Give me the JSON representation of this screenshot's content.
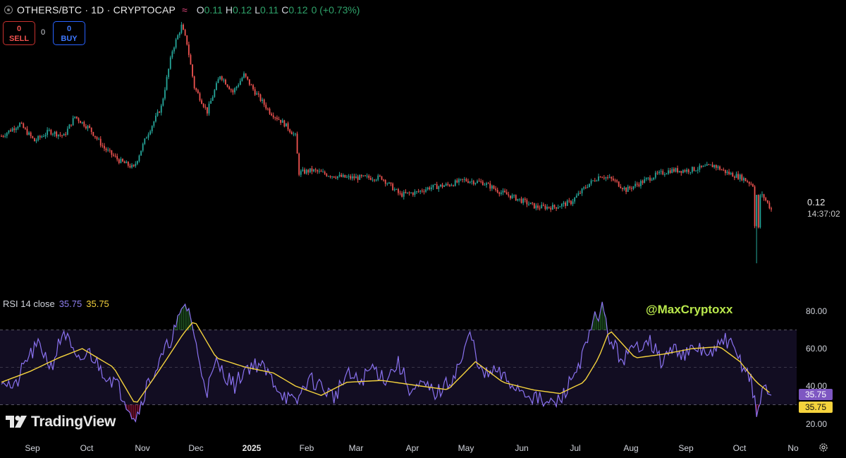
{
  "header": {
    "title": "OTHERS/BTC · 1D · CRYPTOCAP",
    "open_label": "O",
    "open": "0.11",
    "high_label": "H",
    "high": "0.12",
    "low_label": "L",
    "low": "0.11",
    "close_label": "C",
    "close": "0.12",
    "change": "0 (+0.73%)"
  },
  "trade": {
    "sell_value": "0",
    "sell_label": "SELL",
    "spread": "0",
    "buy_value": "0",
    "buy_label": "BUY"
  },
  "price_axis": {
    "last_price": "0.12",
    "countdown": "14:37:02"
  },
  "rsi": {
    "label": "RSI 14 close",
    "value": "35.75",
    "ma_value": "35.75",
    "ticks": [
      "80.00",
      "60.00",
      "40.00",
      "20.00"
    ],
    "badge_value": "35.75",
    "badge_ma_value": "35.75"
  },
  "watermark": "@MaxCryptoxx",
  "logo_text": "TradingView",
  "time_axis": [
    "Sep",
    "Oct",
    "Nov",
    "Dec",
    "2025",
    "Feb",
    "Mar",
    "Apr",
    "May",
    "Jun",
    "Jul",
    "Aug",
    "Sep",
    "Oct",
    "No"
  ],
  "colors": {
    "up": "#26a69a",
    "down": "#ef5350",
    "rsi": "#7e57c2",
    "rsi_ma": "#f5d33d",
    "watermark": "#b9e84c",
    "background": "#000000"
  },
  "chart_data": [
    {
      "type": "candlestick",
      "title": "OTHERS/BTC · 1D · CRYPTOCAP",
      "interval": "1D",
      "x_range": [
        "2024-08-25",
        "2025-10-18"
      ],
      "last_close": 0.12,
      "close_series_approx": {
        "dates": [
          "2024-08-25",
          "2024-09-04",
          "2024-09-12",
          "2024-09-20",
          "2024-09-28",
          "2024-10-04",
          "2024-10-12",
          "2024-10-20",
          "2024-10-28",
          "2024-11-05",
          "2024-11-12",
          "2024-11-20",
          "2024-11-26",
          "2024-12-01",
          "2024-12-04",
          "2024-12-08",
          "2024-12-15",
          "2024-12-22",
          "2024-12-29",
          "2025-01-04",
          "2025-01-10",
          "2025-01-18",
          "2025-01-26",
          "2025-02-01",
          "2025-02-03",
          "2025-02-10",
          "2025-02-20",
          "2025-03-01",
          "2025-03-10",
          "2025-03-20",
          "2025-03-30",
          "2025-04-08",
          "2025-04-15",
          "2025-04-25",
          "2025-05-04",
          "2025-05-14",
          "2025-05-24",
          "2025-06-03",
          "2025-06-12",
          "2025-06-22",
          "2025-07-01",
          "2025-07-10",
          "2025-07-17",
          "2025-07-24",
          "2025-07-31",
          "2025-08-08",
          "2025-08-16",
          "2025-08-24",
          "2025-09-02",
          "2025-09-10",
          "2025-09-17",
          "2025-09-24",
          "2025-10-02",
          "2025-10-08",
          "2025-10-10",
          "2025-10-12",
          "2025-10-14",
          "2025-10-18"
        ],
        "values": [
          0.15,
          0.155,
          0.148,
          0.152,
          0.15,
          0.158,
          0.153,
          0.145,
          0.14,
          0.137,
          0.15,
          0.162,
          0.185,
          0.195,
          0.188,
          0.17,
          0.16,
          0.175,
          0.168,
          0.175,
          0.168,
          0.16,
          0.155,
          0.15,
          0.135,
          0.136,
          0.134,
          0.133,
          0.133,
          0.133,
          0.126,
          0.127,
          0.129,
          0.13,
          0.132,
          0.131,
          0.127,
          0.124,
          0.121,
          0.121,
          0.123,
          0.13,
          0.134,
          0.132,
          0.128,
          0.131,
          0.134,
          0.136,
          0.136,
          0.137,
          0.138,
          0.135,
          0.133,
          0.13,
          0.098,
          0.126,
          0.125,
          0.12
        ]
      },
      "annotations": [
        "0.12",
        "14:37:02"
      ]
    },
    {
      "type": "line",
      "title": "RSI 14 close",
      "ylim": [
        20,
        85
      ],
      "bands": [
        30,
        50,
        70
      ],
      "series": [
        {
          "name": "RSI",
          "x": [
            "2024-08-25",
            "2024-09-01",
            "2024-09-08",
            "2024-09-15",
            "2024-09-21",
            "2024-09-28",
            "2024-10-05",
            "2024-10-12",
            "2024-10-19",
            "2024-10-26",
            "2024-11-02",
            "2024-11-06",
            "2024-11-12",
            "2024-11-19",
            "2024-11-25",
            "2024-11-30",
            "2024-12-03",
            "2024-12-06",
            "2024-12-10",
            "2024-12-15",
            "2024-12-20",
            "2024-12-25",
            "2024-12-30",
            "2025-01-05",
            "2025-01-12",
            "2025-01-19",
            "2025-01-25",
            "2025-02-01",
            "2025-02-08",
            "2025-02-15",
            "2025-02-22",
            "2025-03-01",
            "2025-03-08",
            "2025-03-15",
            "2025-03-22",
            "2025-03-29",
            "2025-04-05",
            "2025-04-12",
            "2025-04-19",
            "2025-04-26",
            "2025-05-03",
            "2025-05-07",
            "2025-05-14",
            "2025-05-21",
            "2025-05-28",
            "2025-06-04",
            "2025-06-11",
            "2025-06-18",
            "2025-06-25",
            "2025-07-02",
            "2025-07-09",
            "2025-07-14",
            "2025-07-18",
            "2025-07-22",
            "2025-07-29",
            "2025-08-05",
            "2025-08-12",
            "2025-08-19",
            "2025-08-26",
            "2025-09-02",
            "2025-09-09",
            "2025-09-16",
            "2025-09-23",
            "2025-09-30",
            "2025-10-07",
            "2025-10-10",
            "2025-10-14",
            "2025-10-18"
          ],
          "values": [
            45,
            38,
            55,
            62,
            50,
            70,
            52,
            58,
            48,
            42,
            30,
            22,
            40,
            52,
            65,
            76,
            84,
            78,
            55,
            38,
            52,
            46,
            40,
            50,
            52,
            44,
            36,
            30,
            44,
            40,
            34,
            46,
            42,
            50,
            44,
            52,
            37,
            40,
            36,
            42,
            55,
            68,
            45,
            48,
            42,
            38,
            34,
            30,
            32,
            45,
            60,
            76,
            82,
            65,
            54,
            60,
            66,
            53,
            60,
            57,
            60,
            56,
            66,
            55,
            44,
            24,
            40,
            35.75
          ]
        },
        {
          "name": "RSI MA",
          "x": [
            "2024-08-25",
            "2024-09-10",
            "2024-09-25",
            "2024-10-08",
            "2024-10-25",
            "2024-11-06",
            "2024-11-20",
            "2024-12-02",
            "2024-12-08",
            "2024-12-20",
            "2025-01-05",
            "2025-01-20",
            "2025-02-01",
            "2025-02-15",
            "2025-03-01",
            "2025-03-20",
            "2025-04-10",
            "2025-04-25",
            "2025-05-10",
            "2025-05-25",
            "2025-06-10",
            "2025-06-25",
            "2025-07-08",
            "2025-07-16",
            "2025-07-22",
            "2025-08-05",
            "2025-08-20",
            "2025-09-05",
            "2025-09-20",
            "2025-10-01",
            "2025-10-10",
            "2025-10-18"
          ],
          "values": [
            42,
            48,
            55,
            60,
            50,
            30,
            50,
            68,
            75,
            55,
            50,
            47,
            40,
            35,
            42,
            43,
            40,
            38,
            53,
            42,
            38,
            36,
            42,
            55,
            70,
            55,
            57,
            60,
            61,
            53,
            42,
            35.75
          ]
        }
      ]
    }
  ]
}
